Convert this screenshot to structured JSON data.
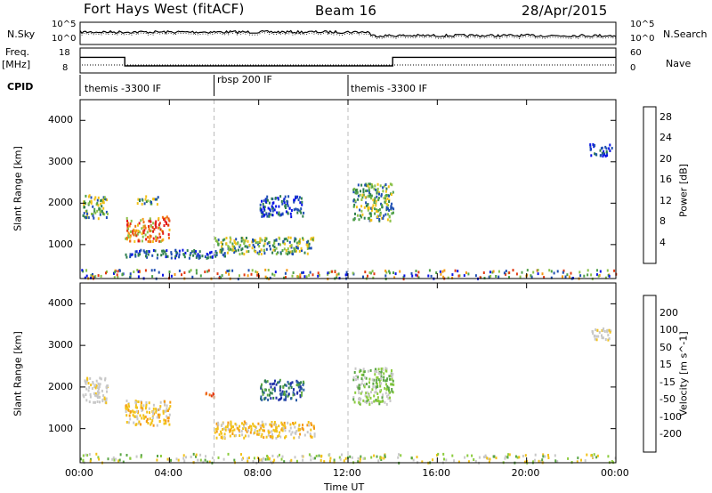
{
  "header": {
    "title": "Fort Hays West (fitACF)",
    "beam": "Beam 16",
    "date": "28/Apr/2015"
  },
  "summary_panels": {
    "nsky_label": "N.Sky",
    "nsearch_label": "N.Search",
    "freq_label_top": "Freq.",
    "freq_label_bottom": "[MHz]",
    "nave_label": "Nave",
    "cpid_label": "CPID",
    "noise_ticks": [
      "10^5",
      "10^0"
    ],
    "freq_ticks": [
      "18",
      "8"
    ],
    "nave_ticks": [
      "60",
      "0"
    ],
    "cpid_segments": [
      {
        "label": "themis -3300 IF",
        "start_hour": 0
      },
      {
        "label": "rbsp 200 IF",
        "start_hour": 6
      },
      {
        "label": "themis -3300 IF",
        "start_hour": 12
      }
    ]
  },
  "axes": {
    "ylabel": "Slant Range [km]",
    "xlabel": "Time UT",
    "x_ticks": [
      "00:00",
      "04:00",
      "08:00",
      "12:00",
      "16:00",
      "20:00",
      "00:00"
    ],
    "y_ticks": [
      "1000",
      "2000",
      "3000",
      "4000"
    ],
    "x_range_hours": [
      0,
      24
    ],
    "y_range_km": [
      180,
      4500
    ]
  },
  "colorbars": {
    "power": {
      "label": "Power [dB]",
      "ticks": [
        "4",
        "8",
        "12",
        "16",
        "20",
        "24",
        "28"
      ],
      "colors": [
        "#0a14e6",
        "#2050b4",
        "#2f7f4f",
        "#4fa048",
        "#8cc24a",
        "#f2c21a",
        "#f59a14",
        "#f07012",
        "#e23a12",
        "#e2181a"
      ]
    },
    "velocity": {
      "label": "Velocity [m s^-1]",
      "ticks": [
        "200",
        "100",
        "50",
        "15",
        "-15",
        "-50",
        "-100",
        "-200"
      ],
      "colors": [
        "#2030a8",
        "#2a5ca6",
        "#2f7f4f",
        "#5aa644",
        "#8ccc3e",
        "#c8c8c8",
        "#f2c21a",
        "#f59a14",
        "#f07012",
        "#e23a12",
        "#e2181a"
      ]
    }
  },
  "chart_data": {
    "type": "heatmap",
    "title": "Fort Hays West (fitACF)",
    "xlabel": "Time UT",
    "ylabel": "Slant Range [km]",
    "xlim_hours": [
      0,
      24
    ],
    "ylim_km": [
      180,
      4500
    ],
    "grid": false,
    "cpid_change_hours": [
      6,
      12
    ],
    "freq_mhz_segments": [
      {
        "start": 0,
        "end": 2,
        "freq": 14.5
      },
      {
        "start": 2,
        "end": 14,
        "freq": 10.5
      },
      {
        "start": 14,
        "end": 24,
        "freq": 14.5
      }
    ],
    "power_patches": [
      {
        "t0": 0.1,
        "t1": 1.2,
        "r0": 1650,
        "r1": 2250,
        "level": "mid"
      },
      {
        "t0": 2.0,
        "t1": 4.0,
        "r0": 1100,
        "r1": 1700,
        "level": "high"
      },
      {
        "t0": 2.5,
        "t1": 3.5,
        "r0": 2000,
        "r1": 2200,
        "level": "mid"
      },
      {
        "t0": 2.0,
        "t1": 6.5,
        "r0": 700,
        "r1": 900,
        "level": "low"
      },
      {
        "t0": 6.0,
        "t1": 10.5,
        "r0": 800,
        "r1": 1200,
        "level": "mid"
      },
      {
        "t0": 8.0,
        "t1": 10.0,
        "r0": 1700,
        "r1": 2200,
        "level": "low"
      },
      {
        "t0": 12.2,
        "t1": 14.0,
        "r0": 1600,
        "r1": 2500,
        "level": "mid"
      },
      {
        "t0": 22.8,
        "t1": 23.8,
        "r0": 3150,
        "r1": 3450,
        "level": "low"
      },
      {
        "t0": 0.0,
        "t1": 24.0,
        "r0": 200,
        "r1": 420,
        "level": "scatter"
      }
    ],
    "velocity_patches": [
      {
        "t0": 0.1,
        "t1": 1.2,
        "r0": 1650,
        "r1": 2250,
        "vel": "near-zero"
      },
      {
        "t0": 2.0,
        "t1": 4.0,
        "r0": 1100,
        "r1": 1700,
        "vel": "-15 to -50"
      },
      {
        "t0": 5.6,
        "t1": 6.0,
        "r0": 1750,
        "r1": 1900,
        "vel": "-100"
      },
      {
        "t0": 6.0,
        "t1": 10.5,
        "r0": 800,
        "r1": 1200,
        "vel": "-15 to -50"
      },
      {
        "t0": 8.0,
        "t1": 10.0,
        "r0": 1700,
        "r1": 2200,
        "vel": "50 to 100"
      },
      {
        "t0": 12.2,
        "t1": 14.0,
        "r0": 1600,
        "r1": 2500,
        "vel": "15 to 50"
      },
      {
        "t0": 22.8,
        "t1": 23.8,
        "r0": 3150,
        "r1": 3450,
        "vel": "near-zero"
      }
    ]
  }
}
